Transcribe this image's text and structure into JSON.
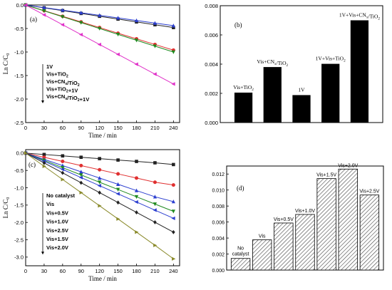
{
  "chart_data": [
    {
      "panel": "a",
      "type": "line",
      "ylabel": "Ln C/C",
      "ylabel_sub": "0",
      "xlabel": "Time / min",
      "xlim": [
        0,
        250
      ],
      "ylim": [
        -2.5,
        0
      ],
      "xticks": [
        0,
        30,
        60,
        90,
        120,
        150,
        180,
        210,
        240
      ],
      "yticks": [
        0.0,
        -0.5,
        -1.0,
        -1.5,
        -2.0,
        -2.5
      ],
      "ytick_labels": [
        "0.0",
        "-0.5",
        "-1.0",
        "-1.5",
        "-2.0",
        "-2.5"
      ],
      "x": [
        0,
        30,
        60,
        90,
        120,
        150,
        180,
        210,
        240
      ],
      "series": [
        {
          "name": "1V",
          "color": "#222222",
          "marker": "square",
          "values": [
            0,
            -0.06,
            -0.12,
            -0.18,
            -0.24,
            -0.3,
            -0.36,
            -0.42,
            -0.48
          ]
        },
        {
          "name": "Vis+TiO2",
          "color": "#e03030",
          "marker": "circle",
          "values": [
            0,
            -0.12,
            -0.24,
            -0.36,
            -0.48,
            -0.6,
            -0.72,
            -0.84,
            -0.96
          ]
        },
        {
          "name": "Vis+CNx/TiO2",
          "color": "#2c3fd0",
          "marker": "triangle-up",
          "values": [
            0,
            -0.055,
            -0.11,
            -0.165,
            -0.22,
            -0.275,
            -0.33,
            -0.385,
            -0.44
          ]
        },
        {
          "name": "Vis+TiO2+1V",
          "color": "#1f8a1f",
          "marker": "triangle-down",
          "values": [
            0,
            -0.125,
            -0.25,
            -0.375,
            -0.5,
            -0.625,
            -0.75,
            -0.875,
            -1.0
          ]
        },
        {
          "name": "Vis+CNx/TiO2+1V",
          "color": "#e030c8",
          "marker": "triangle-left",
          "values": [
            0,
            -0.21,
            -0.42,
            -0.63,
            -0.84,
            -1.05,
            -1.26,
            -1.47,
            -1.68
          ]
        }
      ]
    },
    {
      "panel": "b",
      "type": "bar",
      "categories": [
        "Vis+TiO2",
        "Vis+CNx/TiO2",
        "1V",
        "1V+Vis+TiO2",
        "1V+Vis+CNx/TiO2"
      ],
      "values": [
        0.00205,
        0.0038,
        0.00188,
        0.00402,
        0.007
      ],
      "ylim": [
        0,
        0.008
      ],
      "yticks": [
        0.0,
        0.002,
        0.004,
        0.006,
        0.008
      ],
      "ytick_labels": [
        "0.000",
        "0.002",
        "0.004",
        "0.006",
        "0.008"
      ],
      "bar_color": "#000000"
    },
    {
      "panel": "c",
      "type": "line",
      "ylabel": "Ln C/C",
      "ylabel_sub": "0",
      "xlabel": "Time / min",
      "xlim": [
        0,
        250
      ],
      "ylim": [
        -3.25,
        0.1
      ],
      "xticks": [
        0,
        30,
        60,
        90,
        120,
        150,
        180,
        210,
        240
      ],
      "yticks": [
        0.0,
        -0.5,
        -1.0,
        -1.5,
        -2.0,
        -2.5,
        -3.0
      ],
      "ytick_labels": [
        "0.0",
        "-0.5",
        "-1.0",
        "-1.5",
        "-2.0",
        "-2.5",
        "-3.0"
      ],
      "x": [
        0,
        30,
        60,
        90,
        120,
        150,
        180,
        210,
        240
      ],
      "series": [
        {
          "name": "No catalyst",
          "color": "#222222",
          "marker": "square",
          "values": [
            0,
            -0.04,
            -0.08,
            -0.12,
            -0.16,
            -0.2,
            -0.24,
            -0.28,
            -0.33
          ]
        },
        {
          "name": "Vis",
          "color": "#e03030",
          "marker": "circle",
          "values": [
            0,
            -0.12,
            -0.24,
            -0.36,
            -0.48,
            -0.6,
            -0.72,
            -0.84,
            -0.92
          ]
        },
        {
          "name": "Vis+0.5V",
          "color": "#2c3fd0",
          "marker": "triangle-up",
          "values": [
            0,
            -0.18,
            -0.36,
            -0.54,
            -0.72,
            -0.9,
            -1.08,
            -1.26,
            -1.4
          ]
        },
        {
          "name": "Vis+1.0V",
          "color": "#1f8a1f",
          "marker": "triangle-down",
          "values": [
            0,
            -0.21,
            -0.42,
            -0.63,
            -0.84,
            -1.05,
            -1.26,
            -1.47,
            -1.68
          ]
        },
        {
          "name": "Vis+2.5V",
          "color": "#2c3fd0",
          "marker": "triangle-left",
          "values": [
            0,
            -0.235,
            -0.47,
            -0.705,
            -0.94,
            -1.175,
            -1.41,
            -1.645,
            -1.88
          ]
        },
        {
          "name": "Vis+1.5V",
          "color": "#222222",
          "marker": "diamond",
          "values": [
            0,
            -0.285,
            -0.57,
            -0.855,
            -1.14,
            -1.425,
            -1.71,
            -1.995,
            -2.28
          ]
        },
        {
          "name": "Vis+2.0V",
          "color": "#8a8a2a",
          "marker": "triangle-right",
          "values": [
            0,
            -0.38,
            -0.76,
            -1.14,
            -1.52,
            -1.9,
            -2.28,
            -2.66,
            -3.05
          ]
        }
      ]
    },
    {
      "panel": "d",
      "type": "bar",
      "categories": [
        "No catalyst",
        "Vis",
        "Vis+0.5V",
        "Vis+1.0V",
        "Vis+1.5V",
        "Vis+2.0V",
        "Vis+2.5V"
      ],
      "values": [
        0.00145,
        0.00378,
        0.00588,
        0.00695,
        0.01143,
        0.01262,
        0.00938
      ],
      "ylim": [
        0,
        0.013
      ],
      "yticks": [
        0.0,
        0.002,
        0.004,
        0.006,
        0.008,
        0.01,
        0.012
      ],
      "ytick_labels": [
        "0.000",
        "0.002",
        "0.004",
        "0.006",
        "0.008",
        "0.010",
        "0.012"
      ],
      "bar_style": "hatched"
    }
  ]
}
